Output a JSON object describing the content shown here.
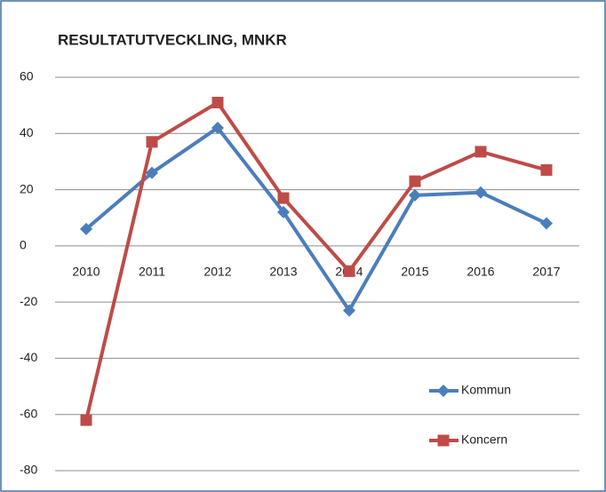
{
  "chart_data": {
    "type": "line",
    "title": "RESULTATUTVECKLING, MNKR",
    "categories": [
      "2010",
      "2011",
      "2012",
      "2013",
      "2014",
      "2015",
      "2016",
      "2017"
    ],
    "series": [
      {
        "name": "Kommun",
        "color": "#4a7ebb",
        "marker": "diamond",
        "values": [
          6,
          26,
          42,
          12,
          -23,
          18,
          19,
          8
        ]
      },
      {
        "name": "Koncern",
        "color": "#be4b48",
        "marker": "square",
        "values": [
          -62,
          37,
          51,
          17,
          -9,
          23,
          33.5,
          27
        ]
      }
    ],
    "ylim": [
      -80,
      60
    ],
    "yticks": [
      -80,
      -60,
      -40,
      -20,
      0,
      20,
      40,
      60
    ],
    "grid": true,
    "legend": "lower right"
  }
}
